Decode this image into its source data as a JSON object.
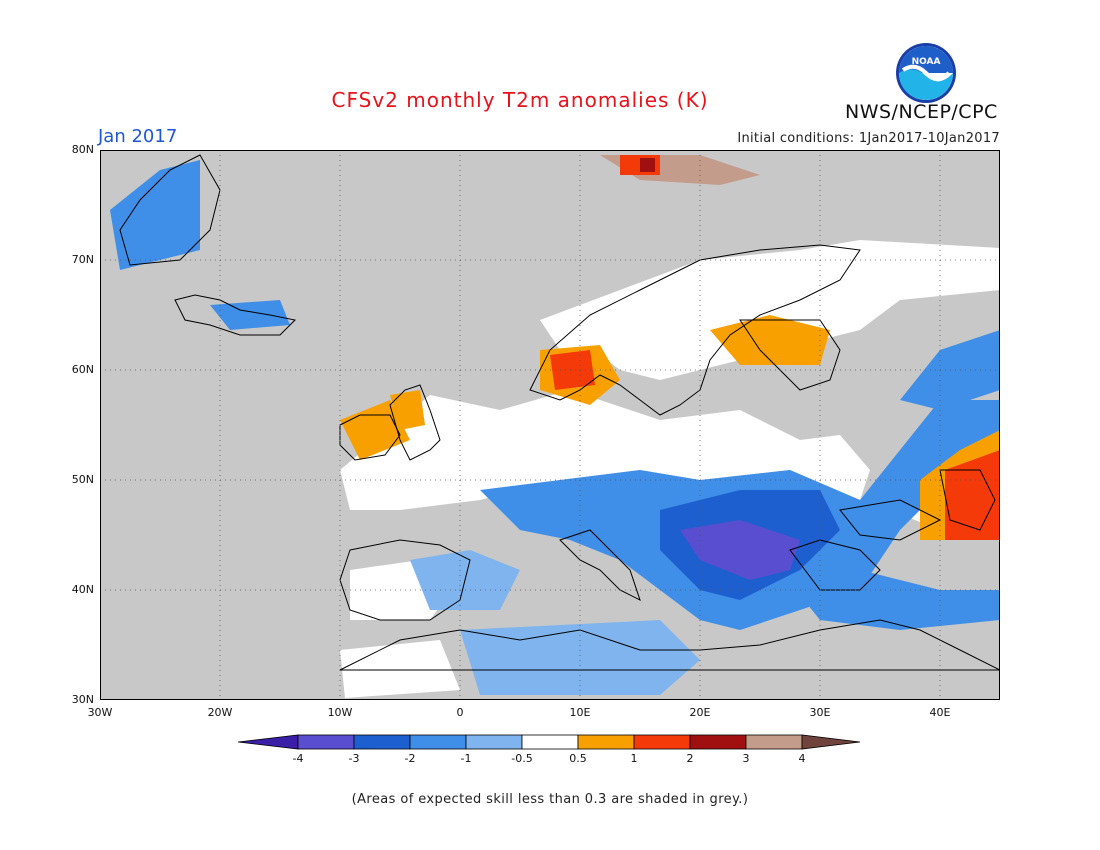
{
  "title": "CFSv2 monthly T2m anomalies (K)",
  "month": "Jan 2017",
  "initial_conditions": "Initial conditions: 1Jan2017-10Jan2017",
  "agency": "NWS/NCEP/CPC",
  "logo_text": "NOAA",
  "footnote": "(Areas of expected skill less than 0.3 are shaded in grey.)",
  "map": {
    "lat_labels": [
      "80N",
      "70N",
      "60N",
      "50N",
      "40N",
      "30N"
    ],
    "lon_labels": [
      "30W",
      "20W",
      "10W",
      "0",
      "10E",
      "20E",
      "30E",
      "40E"
    ],
    "lon_range": [
      -30,
      45
    ],
    "lat_range": [
      30,
      80
    ],
    "grey_color": "#c8c8c8"
  },
  "colorbar": {
    "labels": [
      "-4",
      "-3",
      "-2",
      "-1",
      "-0.5",
      "0.5",
      "1",
      "2",
      "3",
      "4"
    ],
    "colors": [
      "#3b1ea8",
      "#5a4ed0",
      "#1e5fd0",
      "#3f8ee8",
      "#7fb4ee",
      "#ffffff",
      "#f8a000",
      "#f53a0a",
      "#a01010",
      "#c49c8c",
      "#70433c"
    ]
  }
}
